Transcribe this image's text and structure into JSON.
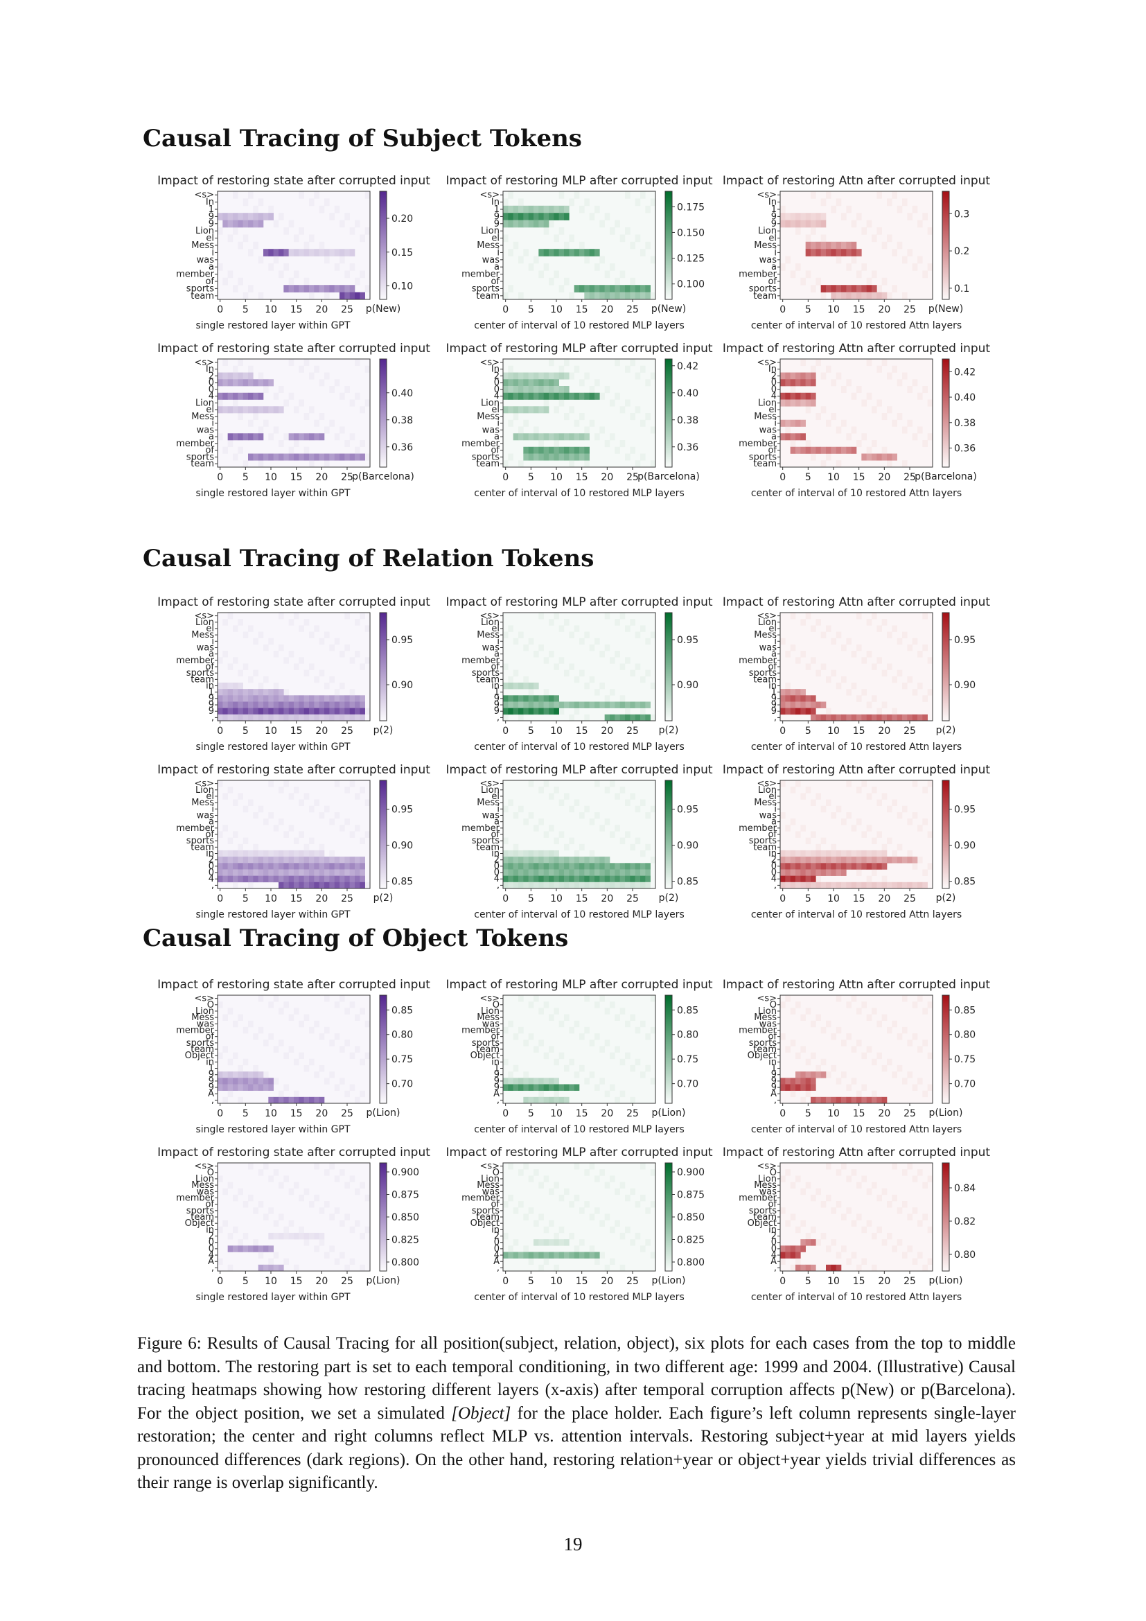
{
  "sections": [
    {
      "title": "Causal Tracing of Subject Tokens"
    },
    {
      "title": "Causal Tracing of Relation Tokens"
    },
    {
      "title": "Causal Tracing of Object Tokens"
    }
  ],
  "panel_titles": {
    "state": "Impact of restoring state after corrupted input",
    "mlp": "Impact of restoring MLP after corrupted input",
    "attn": "Impact of restoring Attn after corrupted input"
  },
  "xlabels": {
    "state": "single restored layer within GPT",
    "mlp": "center of interval of 10 restored MLP layers",
    "attn": "center of interval of 10 restored Attn layers"
  },
  "colors": {
    "state": "#54278f",
    "mlp": "#006d2c",
    "attn": "#a50f15"
  },
  "token_sets": {
    "subj_a": [
      "<s>",
      "In",
      "1",
      "9",
      "9",
      "Lion",
      "el",
      "Mess",
      "i",
      "was",
      "a",
      "member",
      "of",
      "sports",
      "team"
    ],
    "subj_b": [
      "<s>",
      "In",
      "2",
      "0",
      "0",
      "4",
      "Lion",
      "el",
      "Mess",
      "i",
      "was",
      "a",
      "member",
      "of",
      "sports",
      "team"
    ],
    "rel_a": [
      "<s>",
      "Lion",
      "el",
      "Mess",
      "i",
      "was",
      "a",
      "member",
      "of",
      "sports",
      "team",
      "in",
      "1",
      "9",
      "9",
      "9",
      ","
    ],
    "rel_b": [
      "<s>",
      "Lion",
      "el",
      "Mess",
      "i",
      "was",
      "a",
      "member",
      "of",
      "sports",
      "team",
      "in",
      "2",
      "0",
      "0",
      "4",
      ","
    ],
    "obj_a": [
      "<s>",
      "O",
      "Lion",
      "Mess",
      "was",
      "member",
      "of",
      "sports",
      "team",
      "Object",
      "in",
      "1",
      "9",
      "9",
      "9",
      "A",
      ","
    ],
    "obj_b": [
      "<s>",
      "O",
      "Lion",
      "Mess",
      "was",
      "member",
      "of",
      "sports",
      "team",
      "Object",
      "in",
      "2",
      "0",
      "0",
      "4",
      "A",
      ","
    ]
  },
  "chart_data": [
    {
      "type": "heatmap",
      "id": "s1-state",
      "kind": "state",
      "tokens": "subj_a",
      "unit": "p(New)",
      "cbar_ticks": [
        "0.20",
        "0.15",
        "0.10"
      ],
      "cbar_range": [
        0.08,
        0.24
      ],
      "x_ticks": [
        "0",
        "5",
        "10",
        "15",
        "20",
        "25"
      ],
      "hot": [
        [
          3,
          0,
          10,
          0.35
        ],
        [
          4,
          1,
          8,
          0.5
        ],
        [
          8,
          9,
          13,
          0.9
        ],
        [
          8,
          14,
          26,
          0.25
        ],
        [
          13,
          13,
          26,
          0.6
        ],
        [
          14,
          24,
          28,
          0.95
        ]
      ]
    },
    {
      "type": "heatmap",
      "id": "s1-mlp",
      "kind": "mlp",
      "tokens": "subj_a",
      "unit": "p(New)",
      "cbar_ticks": [
        "0.175",
        "0.150",
        "0.125",
        "0.100"
      ],
      "cbar_range": [
        0.085,
        0.19
      ],
      "x_ticks": [
        "0",
        "5",
        "10",
        "15",
        "20",
        "25"
      ],
      "hot": [
        [
          2,
          0,
          12,
          0.4
        ],
        [
          3,
          0,
          12,
          0.85
        ],
        [
          4,
          0,
          8,
          0.5
        ],
        [
          8,
          7,
          18,
          0.75
        ],
        [
          13,
          14,
          28,
          0.7
        ],
        [
          14,
          16,
          28,
          0.45
        ]
      ]
    },
    {
      "type": "heatmap",
      "id": "s1-attn",
      "kind": "attn",
      "tokens": "subj_a",
      "unit": "p(New)",
      "cbar_ticks": [
        "0.3",
        "0.2",
        "0.1"
      ],
      "cbar_range": [
        0.07,
        0.36
      ],
      "x_ticks": [
        "0",
        "5",
        "10",
        "15",
        "20",
        "25"
      ],
      "hot": [
        [
          3,
          0,
          8,
          0.2
        ],
        [
          4,
          0,
          8,
          0.3
        ],
        [
          7,
          5,
          14,
          0.5
        ],
        [
          8,
          5,
          15,
          0.8
        ],
        [
          13,
          8,
          18,
          0.85
        ],
        [
          14,
          10,
          20,
          0.3
        ]
      ]
    },
    {
      "type": "heatmap",
      "id": "s2-state",
      "kind": "state",
      "tokens": "subj_b",
      "unit": "p(Barcelona)",
      "cbar_ticks": [
        "0.40",
        "0.38",
        "0.36"
      ],
      "cbar_range": [
        0.345,
        0.425
      ],
      "x_ticks": [
        "0",
        "5",
        "10",
        "15",
        "20",
        "25"
      ],
      "hot": [
        [
          2,
          0,
          6,
          0.3
        ],
        [
          3,
          0,
          10,
          0.5
        ],
        [
          5,
          0,
          8,
          0.7
        ],
        [
          7,
          0,
          12,
          0.3
        ],
        [
          11,
          2,
          8,
          0.75
        ],
        [
          11,
          14,
          20,
          0.6
        ],
        [
          14,
          6,
          28,
          0.6
        ]
      ]
    },
    {
      "type": "heatmap",
      "id": "s2-mlp",
      "kind": "mlp",
      "tokens": "subj_b",
      "unit": "p(Barcelona)",
      "cbar_ticks": [
        "0.42",
        "0.40",
        "0.38",
        "0.36"
      ],
      "cbar_range": [
        0.345,
        0.425
      ],
      "x_ticks": [
        "0",
        "5",
        "10",
        "15",
        "20",
        "25"
      ],
      "hot": [
        [
          2,
          0,
          12,
          0.3
        ],
        [
          3,
          0,
          10,
          0.55
        ],
        [
          4,
          0,
          12,
          0.4
        ],
        [
          5,
          0,
          18,
          0.8
        ],
        [
          7,
          0,
          8,
          0.35
        ],
        [
          11,
          2,
          16,
          0.4
        ],
        [
          13,
          4,
          16,
          0.7
        ],
        [
          14,
          4,
          16,
          0.55
        ]
      ]
    },
    {
      "type": "heatmap",
      "id": "s2-attn",
      "kind": "attn",
      "tokens": "subj_b",
      "unit": "p(Barcelona)",
      "cbar_ticks": [
        "0.42",
        "0.40",
        "0.38",
        "0.36"
      ],
      "cbar_range": [
        0.345,
        0.43
      ],
      "x_ticks": [
        "0",
        "5",
        "10",
        "15",
        "20",
        "25"
      ],
      "hot": [
        [
          2,
          0,
          6,
          0.55
        ],
        [
          3,
          0,
          6,
          0.75
        ],
        [
          5,
          0,
          6,
          0.85
        ],
        [
          6,
          0,
          6,
          0.4
        ],
        [
          9,
          0,
          4,
          0.45
        ],
        [
          11,
          0,
          4,
          0.7
        ],
        [
          13,
          2,
          14,
          0.6
        ],
        [
          14,
          16,
          22,
          0.5
        ]
      ]
    },
    {
      "type": "heatmap",
      "id": "r1-state",
      "kind": "state",
      "tokens": "rel_a",
      "unit": "p(2)",
      "cbar_ticks": [
        "0.95",
        "0.90"
      ],
      "cbar_range": [
        0.86,
        0.98
      ],
      "x_ticks": [
        "0",
        "5",
        "10",
        "15",
        "20",
        "25"
      ],
      "hot": [
        [
          11,
          0,
          4,
          0.2
        ],
        [
          12,
          0,
          12,
          0.4
        ],
        [
          13,
          0,
          28,
          0.5
        ],
        [
          14,
          0,
          28,
          0.65
        ],
        [
          15,
          0,
          28,
          0.9
        ],
        [
          16,
          0,
          28,
          0.3
        ]
      ]
    },
    {
      "type": "heatmap",
      "id": "r1-mlp",
      "kind": "mlp",
      "tokens": "rel_a",
      "unit": "p(2)",
      "cbar_ticks": [
        "0.95",
        "0.90"
      ],
      "cbar_range": [
        0.86,
        0.98
      ],
      "x_ticks": [
        "0",
        "5",
        "10",
        "15",
        "20",
        "25"
      ],
      "hot": [
        [
          11,
          0,
          6,
          0.3
        ],
        [
          13,
          0,
          10,
          0.75
        ],
        [
          14,
          0,
          28,
          0.5
        ],
        [
          15,
          0,
          10,
          0.95
        ],
        [
          16,
          20,
          28,
          0.75
        ]
      ]
    },
    {
      "type": "heatmap",
      "id": "r1-attn",
      "kind": "attn",
      "tokens": "rel_a",
      "unit": "p(2)",
      "cbar_ticks": [
        "0.95",
        "0.90"
      ],
      "cbar_range": [
        0.86,
        0.98
      ],
      "x_ticks": [
        "0",
        "5",
        "10",
        "15",
        "20",
        "25"
      ],
      "hot": [
        [
          12,
          0,
          4,
          0.5
        ],
        [
          13,
          0,
          6,
          0.75
        ],
        [
          14,
          0,
          8,
          0.55
        ],
        [
          15,
          0,
          6,
          0.95
        ],
        [
          16,
          6,
          28,
          0.7
        ]
      ]
    },
    {
      "type": "heatmap",
      "id": "r2-state",
      "kind": "state",
      "tokens": "rel_b",
      "unit": "p(2)",
      "cbar_ticks": [
        "0.95",
        "0.90",
        "0.85"
      ],
      "cbar_range": [
        0.84,
        0.99
      ],
      "x_ticks": [
        "0",
        "5",
        "10",
        "15",
        "20",
        "25"
      ],
      "hot": [
        [
          11,
          0,
          20,
          0.2
        ],
        [
          12,
          0,
          28,
          0.4
        ],
        [
          13,
          0,
          28,
          0.6
        ],
        [
          14,
          0,
          28,
          0.45
        ],
        [
          15,
          0,
          28,
          0.7
        ],
        [
          16,
          12,
          28,
          0.85
        ]
      ]
    },
    {
      "type": "heatmap",
      "id": "r2-mlp",
      "kind": "mlp",
      "tokens": "rel_b",
      "unit": "p(2)",
      "cbar_ticks": [
        "0.95",
        "0.90",
        "0.85"
      ],
      "cbar_range": [
        0.84,
        0.99
      ],
      "x_ticks": [
        "0",
        "5",
        "10",
        "15",
        "20",
        "25"
      ],
      "hot": [
        [
          11,
          0,
          10,
          0.2
        ],
        [
          12,
          0,
          20,
          0.45
        ],
        [
          13,
          0,
          28,
          0.65
        ],
        [
          14,
          0,
          28,
          0.55
        ],
        [
          15,
          0,
          28,
          0.8
        ],
        [
          16,
          0,
          28,
          0.2
        ]
      ]
    },
    {
      "type": "heatmap",
      "id": "r2-attn",
      "kind": "attn",
      "tokens": "rel_b",
      "unit": "p(2)",
      "cbar_ticks": [
        "0.95",
        "0.90",
        "0.85"
      ],
      "cbar_range": [
        0.84,
        0.99
      ],
      "x_ticks": [
        "0",
        "5",
        "10",
        "15",
        "20",
        "25"
      ],
      "hot": [
        [
          11,
          0,
          20,
          0.2
        ],
        [
          12,
          0,
          26,
          0.45
        ],
        [
          13,
          0,
          20,
          0.8
        ],
        [
          14,
          0,
          12,
          0.6
        ],
        [
          15,
          0,
          6,
          0.95
        ],
        [
          16,
          0,
          28,
          0.25
        ]
      ]
    },
    {
      "type": "heatmap",
      "id": "o1-state",
      "kind": "state",
      "tokens": "obj_a",
      "unit": "p(Lion)",
      "cbar_ticks": [
        "0.85",
        "0.80",
        "0.75",
        "0.70"
      ],
      "cbar_range": [
        0.66,
        0.88
      ],
      "x_ticks": [
        "0",
        "5",
        "10",
        "15",
        "20",
        "25"
      ],
      "hot": [
        [
          12,
          0,
          8,
          0.3
        ],
        [
          13,
          0,
          10,
          0.55
        ],
        [
          14,
          0,
          10,
          0.5
        ],
        [
          16,
          10,
          20,
          0.75
        ]
      ]
    },
    {
      "type": "heatmap",
      "id": "o1-mlp",
      "kind": "mlp",
      "tokens": "obj_a",
      "unit": "p(Lion)",
      "cbar_ticks": [
        "0.85",
        "0.80",
        "0.75",
        "0.70"
      ],
      "cbar_range": [
        0.66,
        0.88
      ],
      "x_ticks": [
        "0",
        "5",
        "10",
        "15",
        "20",
        "25"
      ],
      "hot": [
        [
          13,
          0,
          10,
          0.3
        ],
        [
          14,
          0,
          14,
          0.8
        ],
        [
          16,
          4,
          12,
          0.3
        ]
      ]
    },
    {
      "type": "heatmap",
      "id": "o1-attn",
      "kind": "attn",
      "tokens": "obj_a",
      "unit": "p(Lion)",
      "cbar_ticks": [
        "0.85",
        "0.80",
        "0.75",
        "0.70"
      ],
      "cbar_range": [
        0.66,
        0.88
      ],
      "x_ticks": [
        "0",
        "5",
        "10",
        "15",
        "20",
        "25"
      ],
      "hot": [
        [
          12,
          3,
          8,
          0.55
        ],
        [
          13,
          0,
          6,
          0.75
        ],
        [
          14,
          0,
          6,
          0.85
        ],
        [
          16,
          6,
          20,
          0.75
        ]
      ]
    },
    {
      "type": "heatmap",
      "id": "o2-state",
      "kind": "state",
      "tokens": "obj_b",
      "unit": "p(Lion)",
      "cbar_ticks": [
        "0.900",
        "0.875",
        "0.850",
        "0.825",
        "0.800"
      ],
      "cbar_range": [
        0.79,
        0.91
      ],
      "x_ticks": [
        "0",
        "5",
        "10",
        "15",
        "20",
        "25"
      ],
      "hot": [
        [
          11,
          10,
          20,
          0.15
        ],
        [
          13,
          2,
          10,
          0.55
        ],
        [
          16,
          8,
          12,
          0.45
        ]
      ]
    },
    {
      "type": "heatmap",
      "id": "o2-mlp",
      "kind": "mlp",
      "tokens": "obj_b",
      "unit": "p(Lion)",
      "cbar_ticks": [
        "0.900",
        "0.875",
        "0.850",
        "0.825",
        "0.800"
      ],
      "cbar_range": [
        0.79,
        0.91
      ],
      "x_ticks": [
        "0",
        "5",
        "10",
        "15",
        "20",
        "25"
      ],
      "hot": [
        [
          12,
          6,
          12,
          0.2
        ],
        [
          14,
          0,
          18,
          0.55
        ]
      ]
    },
    {
      "type": "heatmap",
      "id": "o2-attn",
      "kind": "attn",
      "tokens": "obj_b",
      "unit": "p(Lion)",
      "cbar_ticks": [
        "0.84",
        "0.82",
        "0.80"
      ],
      "cbar_range": [
        0.79,
        0.855
      ],
      "x_ticks": [
        "0",
        "5",
        "10",
        "15",
        "20",
        "25"
      ],
      "hot": [
        [
          12,
          4,
          6,
          0.6
        ],
        [
          13,
          0,
          4,
          0.7
        ],
        [
          14,
          0,
          3,
          0.9
        ],
        [
          16,
          3,
          6,
          0.6
        ],
        [
          16,
          9,
          11,
          0.95
        ]
      ]
    }
  ],
  "caption": {
    "before_object": "Figure 6: Results of Causal Tracing for all position(subject, relation, object), six plots for each cases from the top to middle and bottom. The restoring part is set to each temporal conditioning, in two different age: 1999 and 2004. (Illustrative) Causal tracing heatmaps showing how restoring different layers (x-axis) after temporal corruption affects p(New) or p(Barcelona). For the object position, we set a simulated ",
    "object_italic": "[Object]",
    "after_object": " for the place holder. Each figure’s left column represents single-layer restoration; the center and right columns reflect MLP vs. attention intervals. Restoring subject+year at mid layers yields pronounced differences (dark regions). On the other hand, restoring relation+year or object+year yields trivial differences as their range is overlap significantly."
  },
  "page_number": "19"
}
